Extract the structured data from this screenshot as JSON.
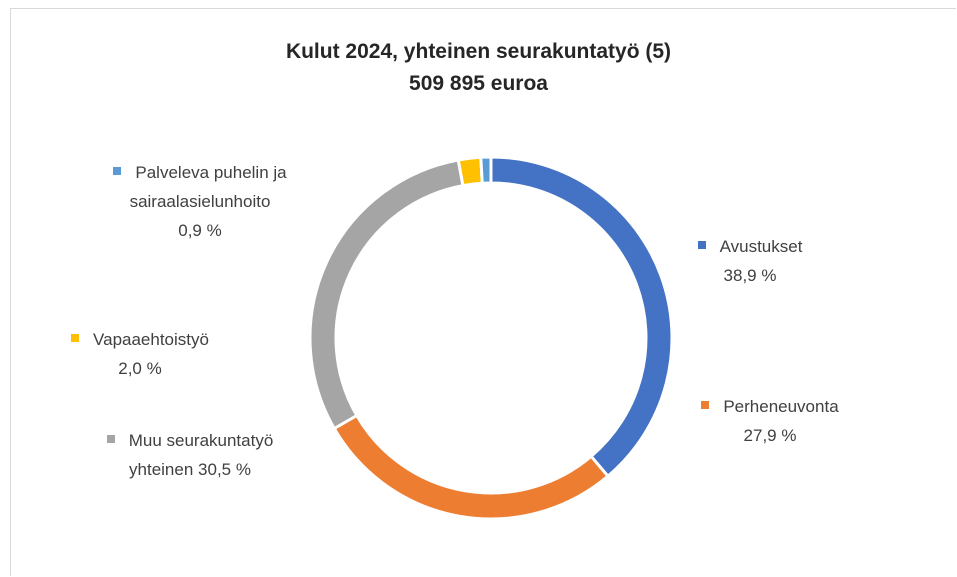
{
  "chart_data": {
    "type": "pie",
    "donut": true,
    "title": "Kulut 2024, yhteinen seurakuntatyö (5)",
    "subtitle": "509 895 euroa",
    "categories": [
      "Avustukset",
      "Perheneuvonta",
      "Muu seurakuntatyö yhteinen",
      "Vapaaehtoistyö",
      "Palveleva puhelin ja sairaalasielunhoito"
    ],
    "values": [
      38.9,
      27.9,
      30.5,
      2.0,
      0.9
    ],
    "value_labels": [
      "38,9 %",
      "27,9 %",
      "30,5 %",
      "2,0 %",
      "0,9 %"
    ],
    "colors": [
      "#4472c4",
      "#ed7d31",
      "#a5a5a5",
      "#ffc000",
      "#5b9bd5"
    ]
  }
}
